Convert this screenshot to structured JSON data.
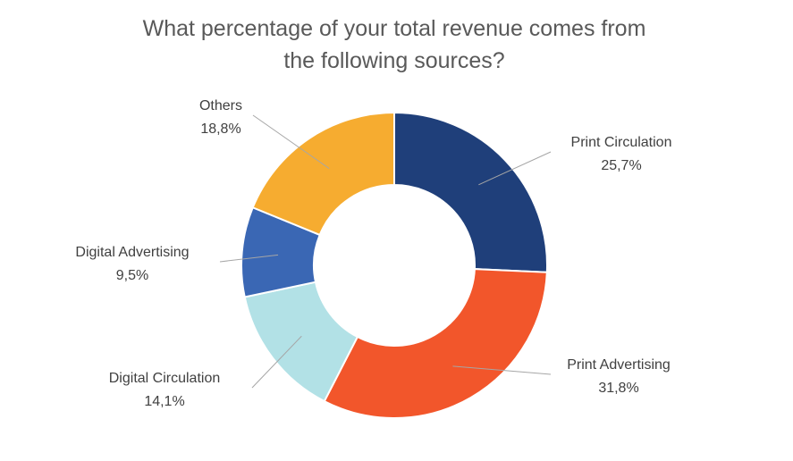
{
  "chart_data": {
    "type": "pie",
    "variant": "donut",
    "title_lines": [
      "What percentage of your total revenue comes from",
      "the following sources?"
    ],
    "slices": [
      {
        "name": "Print Circulation",
        "value": 25.7,
        "value_label": "25,7%",
        "color": "#1f3f7a"
      },
      {
        "name": "Print Advertising",
        "value": 31.8,
        "value_label": "31,8%",
        "color": "#f2562b"
      },
      {
        "name": "Digital Circulation",
        "value": 14.1,
        "value_label": "14,1%",
        "color": "#b2e1e6"
      },
      {
        "name": "Digital Advertising",
        "value": 9.5,
        "value_label": "9,5%",
        "color": "#3a67b4"
      },
      {
        "name": "Others",
        "value": 18.8,
        "value_label": "18,8%",
        "color": "#f6ac30"
      }
    ],
    "legend": "none"
  }
}
